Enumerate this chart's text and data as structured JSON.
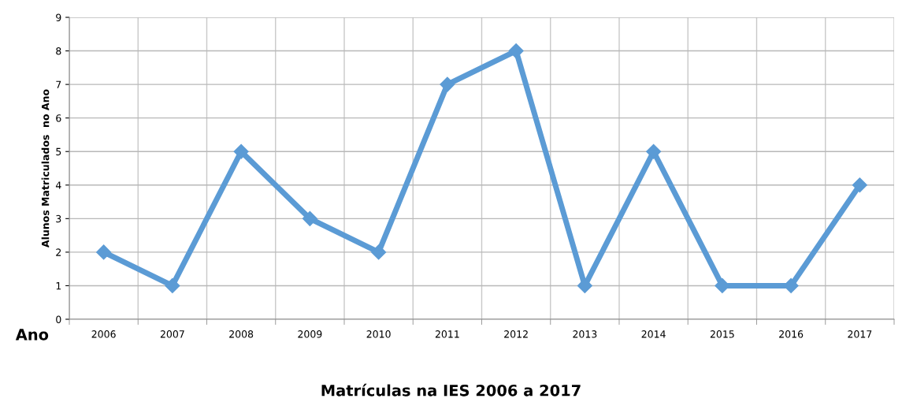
{
  "chart_data": {
    "type": "line",
    "title": "Matrículas na IES 2006 a 2017",
    "xlabel": "Ano",
    "ylabel": "Alunos Matriculados  no Ano",
    "categories": [
      "2006",
      "2007",
      "2008",
      "2009",
      "2010",
      "2011",
      "2012",
      "2013",
      "2014",
      "2015",
      "2016",
      "2017"
    ],
    "series": [
      {
        "color": "#5b9bd5",
        "values": [
          2,
          1,
          5,
          3,
          2,
          7,
          8,
          1,
          5,
          1,
          1,
          4
        ]
      }
    ],
    "ylim": [
      0,
      9
    ],
    "yticks": [
      0,
      1,
      2,
      3,
      4,
      5,
      6,
      7,
      8,
      9
    ],
    "grid": true,
    "marker": "diamond",
    "line_style": "solid",
    "legend": false
  }
}
